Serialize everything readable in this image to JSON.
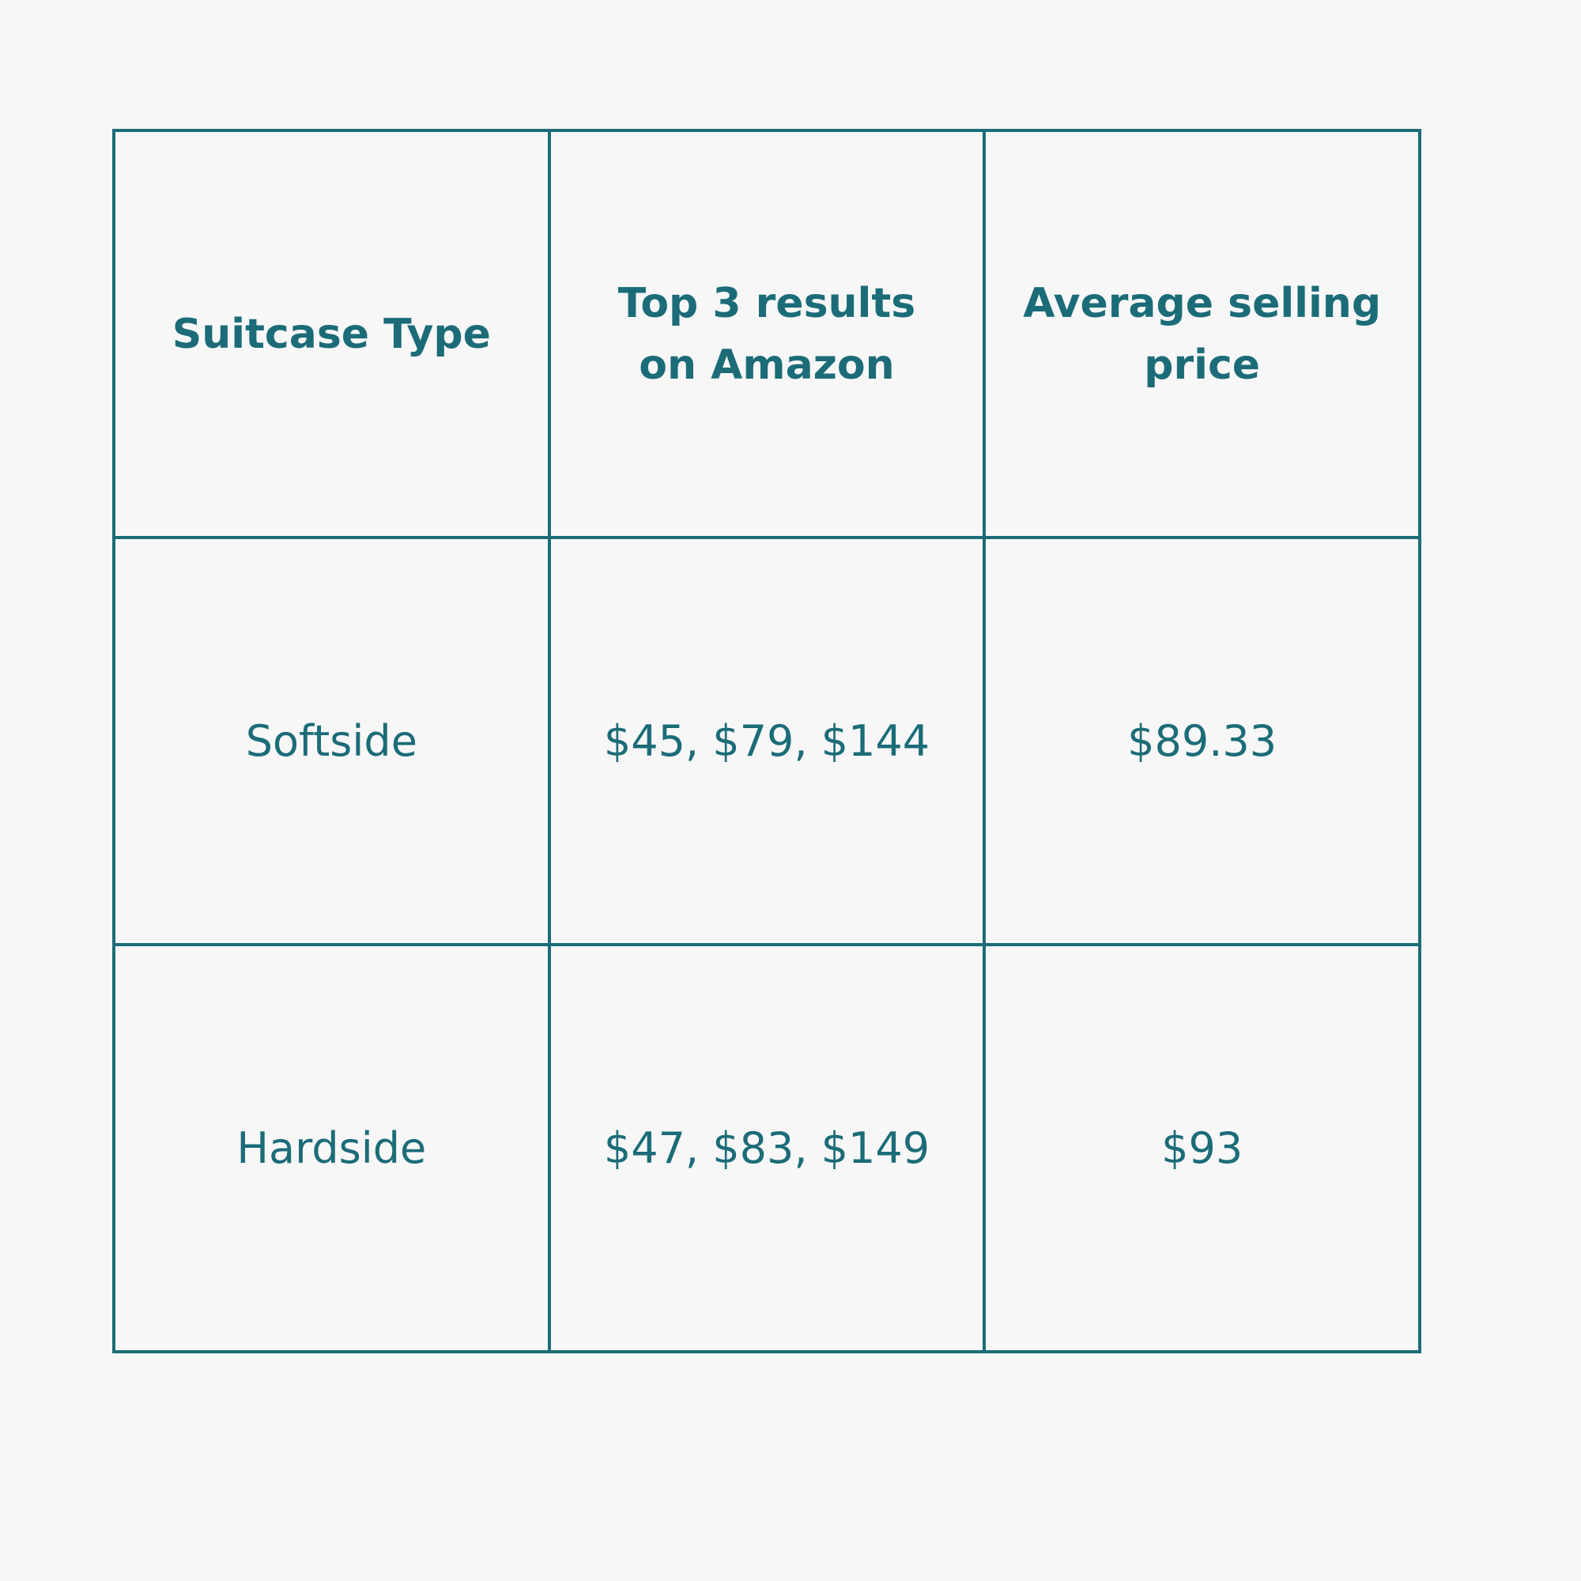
{
  "table": {
    "headers": [
      "Suitcase Type",
      "Top 3 results on Amazon",
      "Average selling price"
    ],
    "rows": [
      [
        "Softside",
        "$45, $79, $144",
        "$89.33"
      ],
      [
        "Hardside",
        "$47, $83, $149",
        "$93"
      ]
    ]
  },
  "colors": {
    "background": "#f7f7f7",
    "accent": "#1b6c78"
  }
}
